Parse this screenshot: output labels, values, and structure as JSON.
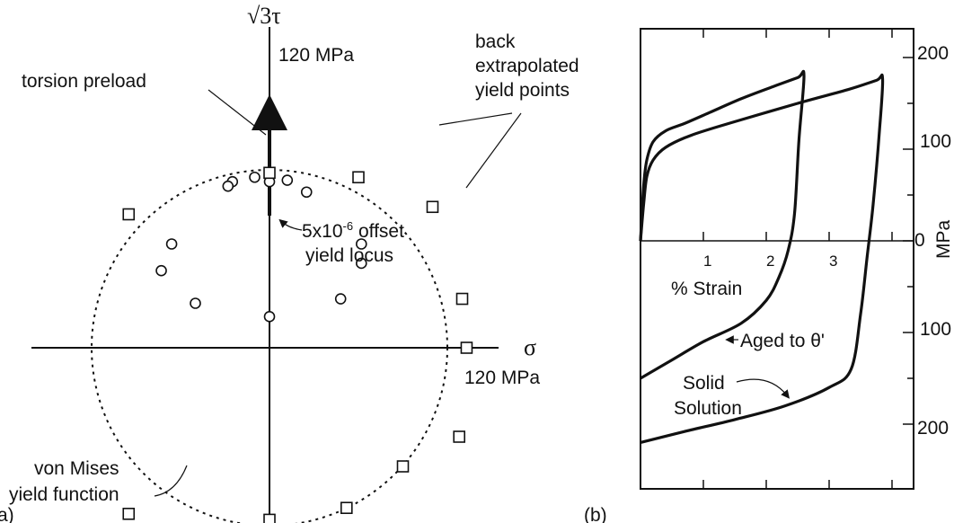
{
  "panels": {
    "a": {
      "label": "(a)",
      "y_axis_label": "√3τ",
      "x_axis_label": "σ",
      "y_axis_mark": "120 MPa",
      "x_axis_mark": "120 MPa",
      "annotations": {
        "torsion_preload": "torsion preload",
        "back_extrapolated_1": "back",
        "back_extrapolated_2": "extrapolated",
        "back_extrapolated_3": "yield points",
        "offset_locus_1": "5x10",
        "offset_locus_exp": "-6",
        "offset_locus_2": " offset",
        "offset_locus_3": "yield locus",
        "von_mises_1": "von Mises",
        "von_mises_2": "yield function"
      }
    },
    "b": {
      "label": "(b)",
      "x_axis_label": "% Strain",
      "y_axis_label": "MPa",
      "x_ticks": [
        "1",
        "2",
        "3"
      ],
      "y_ticks_right": [
        "200",
        "100",
        "0",
        "100",
        "200"
      ],
      "curve_labels": {
        "aged": "Aged to θ'",
        "solid_1": "Solid",
        "solid_2": "Solution"
      }
    }
  },
  "chart_data": [
    {
      "type": "scatter",
      "panel": "a",
      "units": "MPa",
      "x_label": "σ",
      "y_label": "√3τ",
      "yield_function_radius": 120,
      "offset_yield_locus_circles": [
        [
          -10,
          115
        ],
        [
          -25,
          112
        ],
        [
          -28,
          109
        ],
        [
          0,
          112
        ],
        [
          12,
          113
        ],
        [
          25,
          105
        ],
        [
          -66,
          70
        ],
        [
          -73,
          52
        ],
        [
          -50,
          30
        ],
        [
          62,
          70
        ],
        [
          62,
          57
        ],
        [
          48,
          33
        ]
      ],
      "back_extrapolated_squares": [
        [
          0,
          118
        ],
        [
          -95,
          90
        ],
        [
          60,
          115
        ],
        [
          110,
          95
        ],
        [
          130,
          33
        ],
        [
          133,
          0
        ],
        [
          128,
          -60
        ],
        [
          90,
          -80
        ],
        [
          52,
          -108
        ],
        [
          0,
          -116
        ],
        [
          -95,
          -112
        ]
      ],
      "torsion_preload_path": {
        "x": [
          0,
          0
        ],
        "y": [
          21,
          105
        ]
      },
      "preload_start_point": [
        0,
        21
      ]
    },
    {
      "type": "line",
      "panel": "b",
      "x_label": "% Strain",
      "y_label": "MPa",
      "xlim": [
        0,
        4
      ],
      "ylim": [
        -230,
        220
      ],
      "series": [
        {
          "name": "Aged to θ'",
          "x": [
            0,
            0.05,
            0.1,
            0.2,
            0.4,
            0.7,
            1.1,
            1.6,
            2.1,
            2.5,
            2.6,
            2.52,
            2.45,
            2.35,
            2.2,
            2.0,
            1.6,
            1.0,
            0.5,
            0
          ],
          "y": [
            0,
            60,
            88,
            108,
            120,
            128,
            140,
            155,
            168,
            178,
            180,
            110,
            30,
            -10,
            -40,
            -65,
            -90,
            -110,
            -130,
            -150
          ]
        },
        {
          "name": "Solid Solution",
          "x": [
            0,
            0.05,
            0.1,
            0.2,
            0.4,
            0.8,
            1.5,
            2.5,
            3.3,
            3.75,
            3.85,
            3.8,
            3.7,
            3.6,
            3.5,
            3.35,
            3.0,
            2.3,
            1.5,
            0.7,
            0
          ],
          "y": [
            0,
            40,
            70,
            88,
            102,
            115,
            130,
            150,
            165,
            175,
            177,
            120,
            40,
            -20,
            -80,
            -140,
            -160,
            -180,
            -195,
            -208,
            -220
          ]
        }
      ]
    }
  ]
}
